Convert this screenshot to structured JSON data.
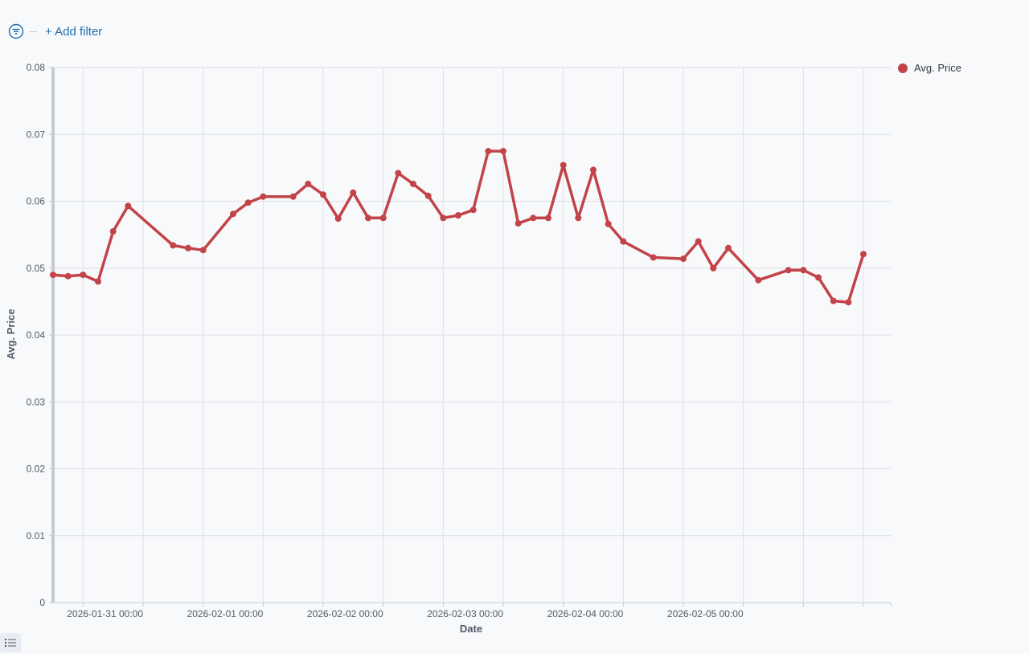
{
  "filter_bar": {
    "add_filter_label": "+ Add filter",
    "filter_icon": "filter-icon"
  },
  "legend": {
    "label": "Avg. Price",
    "color": "#c24348"
  },
  "chart_data": {
    "type": "line",
    "xlabel": "Date",
    "ylabel": "Avg. Price",
    "xlim": [
      "2026-01-30 06:00",
      "2026-02-06 00:00"
    ],
    "ylim": [
      0,
      0.08
    ],
    "y_ticks": [
      "0",
      "0.01",
      "0.02",
      "0.03",
      "0.04",
      "0.05",
      "0.06",
      "0.07",
      "0.08"
    ],
    "x_ticks": [
      {
        "date": "2026-01-31 00:00",
        "label": "2026-01-31 00:00"
      },
      {
        "date": "2026-02-01 00:00",
        "label": "2026-02-01 00:00"
      },
      {
        "date": "2026-02-02 00:00",
        "label": "2026-02-02 00:00"
      },
      {
        "date": "2026-02-03 00:00",
        "label": "2026-02-03 00:00"
      },
      {
        "date": "2026-02-04 00:00",
        "label": "2026-02-04 00:00"
      },
      {
        "date": "2026-02-05 00:00",
        "label": "2026-02-05 00:00"
      }
    ],
    "grid": true,
    "legend_position": "top-right",
    "series": [
      {
        "name": "Avg. Price",
        "color": "#c24348",
        "x": [
          "2026-01-30 06:00",
          "2026-01-30 09:00",
          "2026-01-30 12:00",
          "2026-01-30 15:00",
          "2026-01-30 18:00",
          "2026-01-30 21:00",
          "2026-01-31 06:00",
          "2026-01-31 09:00",
          "2026-01-31 12:00",
          "2026-01-31 18:00",
          "2026-01-31 21:00",
          "2026-02-01 00:00",
          "2026-02-01 06:00",
          "2026-02-01 09:00",
          "2026-02-01 12:00",
          "2026-02-01 15:00",
          "2026-02-01 18:00",
          "2026-02-01 21:00",
          "2026-02-02 00:00",
          "2026-02-02 03:00",
          "2026-02-02 06:00",
          "2026-02-02 09:00",
          "2026-02-02 12:00",
          "2026-02-02 15:00",
          "2026-02-02 18:00",
          "2026-02-02 21:00",
          "2026-02-03 00:00",
          "2026-02-03 03:00",
          "2026-02-03 06:00",
          "2026-02-03 09:00",
          "2026-02-03 12:00",
          "2026-02-03 15:00",
          "2026-02-03 18:00",
          "2026-02-03 21:00",
          "2026-02-04 00:00",
          "2026-02-04 06:00",
          "2026-02-04 12:00",
          "2026-02-04 15:00",
          "2026-02-04 18:00",
          "2026-02-04 21:00",
          "2026-02-05 03:00",
          "2026-02-05 09:00",
          "2026-02-05 12:00",
          "2026-02-05 15:00",
          "2026-02-05 18:00",
          "2026-02-05 21:00",
          "2026-02-06 00:00"
        ],
        "values": [
          0.049,
          0.0488,
          0.049,
          0.048,
          0.0555,
          0.0593,
          0.0534,
          0.053,
          0.0527,
          0.0581,
          0.0598,
          0.0607,
          0.0607,
          0.0626,
          0.061,
          0.0574,
          0.0613,
          0.0575,
          0.0575,
          0.0642,
          0.0626,
          0.0608,
          0.0575,
          0.0579,
          0.0587,
          0.0675,
          0.0675,
          0.0567,
          0.0575,
          0.0575,
          0.0654,
          0.0575,
          0.0647,
          0.0566,
          0.054,
          0.0516,
          0.0514,
          0.054,
          0.05,
          0.053,
          0.0482,
          0.0497,
          0.0497,
          0.0486,
          0.0451,
          0.0449,
          0.0521
        ]
      }
    ]
  }
}
